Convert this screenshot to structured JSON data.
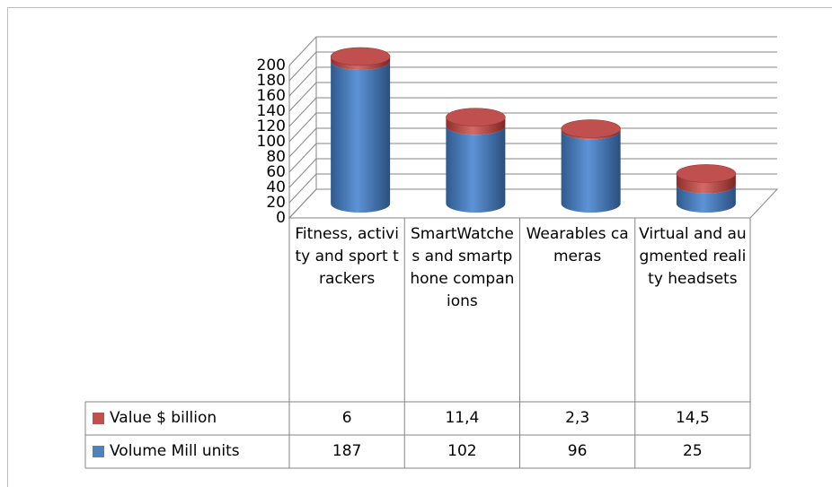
{
  "chart_data": {
    "type": "bar3d_stacked_cylinder",
    "categories": [
      "Fitness, activity and sport trackers",
      "SmartWatches and smartphone companions",
      "Wearables cameras",
      "Virtual and augmented reality headsets"
    ],
    "series": [
      {
        "name": "Value $ billion",
        "color": "#c0504d",
        "values": [
          6,
          11.4,
          2.3,
          14.5
        ],
        "value_labels": [
          "6",
          "11,4",
          "2,3",
          "14,5"
        ]
      },
      {
        "name": "Volume Mill units",
        "color": "#4f81bd",
        "values": [
          187,
          102,
          96,
          25
        ]
      }
    ],
    "ylim": [
      0,
      200
    ],
    "yticks": [
      0,
      20,
      40,
      60,
      80,
      100,
      120,
      140,
      160,
      180,
      200
    ],
    "grid": true
  }
}
